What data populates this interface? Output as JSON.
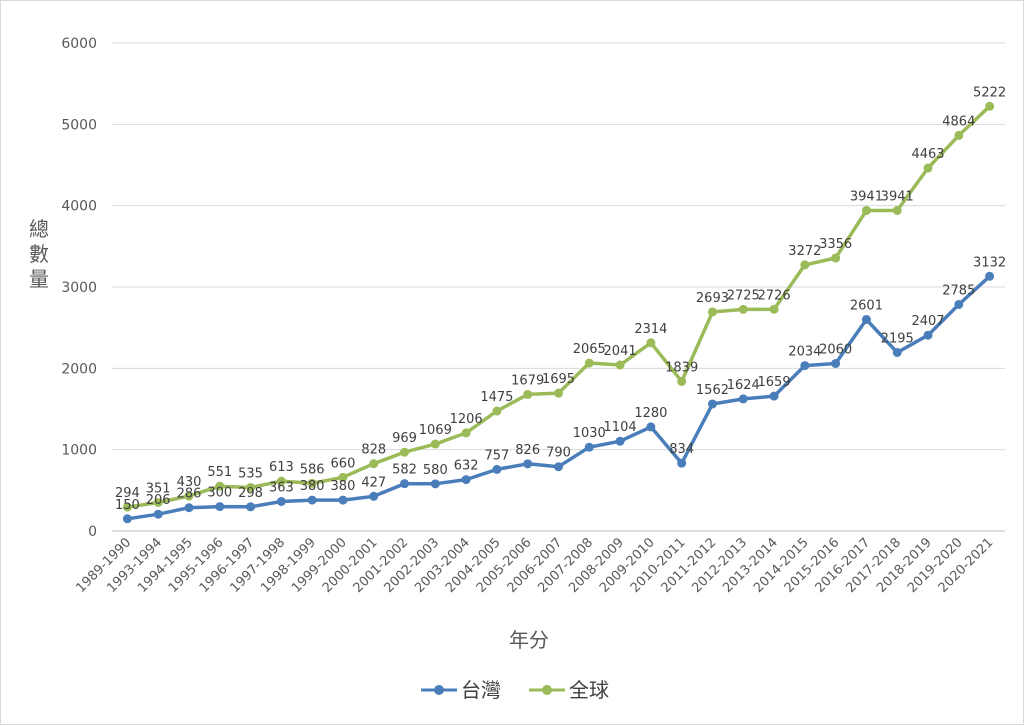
{
  "chart_data": {
    "type": "line",
    "categories": [
      "1989-1990",
      "1993-1994",
      "1994-1995",
      "1995-1996",
      "1996-1997",
      "1997-1998",
      "1998-1999",
      "1999-2000",
      "2000-2001",
      "2001-2002",
      "2002-2003",
      "2003-2004",
      "2004-2005",
      "2005-2006",
      "2006-2007",
      "2007-2008",
      "2008-2009",
      "2009-2010",
      "2010-2011",
      "2011-2012",
      "2012-2013",
      "2013-2014",
      "2014-2015",
      "2015-2016",
      "2016-2017",
      "2017-2018",
      "2018-2019",
      "2019-2020",
      "2020-2021"
    ],
    "series": [
      {
        "name": "台灣",
        "color": "#4a7ebb",
        "values": [
          150,
          206,
          286,
          300,
          298,
          363,
          380,
          380,
          427,
          582,
          580,
          632,
          757,
          826,
          790,
          1030,
          1104,
          1280,
          834,
          1562,
          1624,
          1659,
          2034,
          2060,
          2601,
          2195,
          2407,
          2785,
          3132
        ]
      },
      {
        "name": "全球",
        "color": "#9bbb59",
        "values": [
          294,
          351,
          430,
          551,
          535,
          613,
          586,
          660,
          828,
          969,
          1069,
          1206,
          1475,
          1679,
          1695,
          2065,
          2041,
          2314,
          1839,
          2693,
          2725,
          2726,
          3272,
          3356,
          3941,
          3941,
          4463,
          4864,
          5222
        ]
      }
    ],
    "yticks": [
      "0",
      "1000",
      "2000",
      "3000",
      "4000",
      "5000",
      "6000"
    ],
    "ylim": [
      0,
      6000
    ],
    "xlabel": "年分",
    "ylabel": [
      "總",
      "數",
      "量"
    ],
    "grid": true,
    "legend": "bottom"
  }
}
